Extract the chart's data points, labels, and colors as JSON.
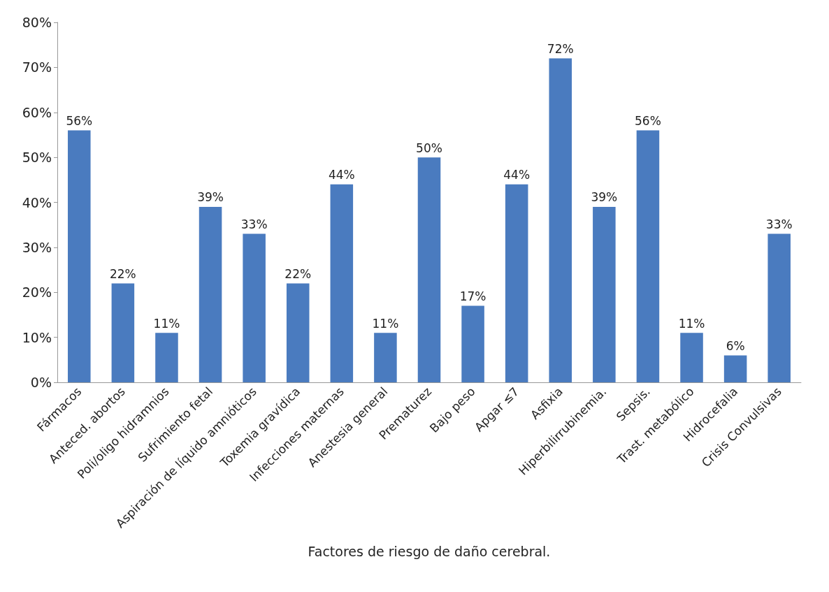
{
  "chart_data": {
    "type": "bar",
    "xlabel": "Factores de riesgo de daño cerebral.",
    "categories": [
      "Fármacos",
      "Anteced. abortos",
      "Poli/oligo hidramnios",
      "Sufrimiento fetal",
      "Aspiración de líquido amnióticos",
      "Toxemia gravídica",
      "Infecciones maternas",
      "Anestesia general",
      "Prematurez",
      "Bajo peso",
      "Apgar ≤7",
      "Asfixia",
      "Hiperbilirrubinemia.",
      "Sepsis.",
      "Trast. metabólico",
      "Hidrocefalia",
      "Crisis Convulsivas"
    ],
    "values": [
      56,
      22,
      11,
      39,
      33,
      22,
      44,
      11,
      50,
      17,
      44,
      72,
      39,
      56,
      11,
      6,
      33
    ],
    "value_labels": [
      "56%",
      "22%",
      "11%",
      "39%",
      "33%",
      "22%",
      "44%",
      "11%",
      "50%",
      "17%",
      "44%",
      "72%",
      "39%",
      "56%",
      "11%",
      "6%",
      "33%"
    ],
    "color": "#4a7bbf",
    "ylim": [
      0,
      80
    ],
    "yticks": [
      {
        "value": 0,
        "label": "0%"
      },
      {
        "value": 10,
        "label": "10%"
      },
      {
        "value": 20,
        "label": "20%"
      },
      {
        "value": 30,
        "label": "30%"
      },
      {
        "value": 40,
        "label": "40%"
      },
      {
        "value": 50,
        "label": "50%"
      },
      {
        "value": 60,
        "label": "60%"
      },
      {
        "value": 70,
        "label": "70%"
      },
      {
        "value": 80,
        "label": "80%"
      }
    ],
    "grid": false
  }
}
